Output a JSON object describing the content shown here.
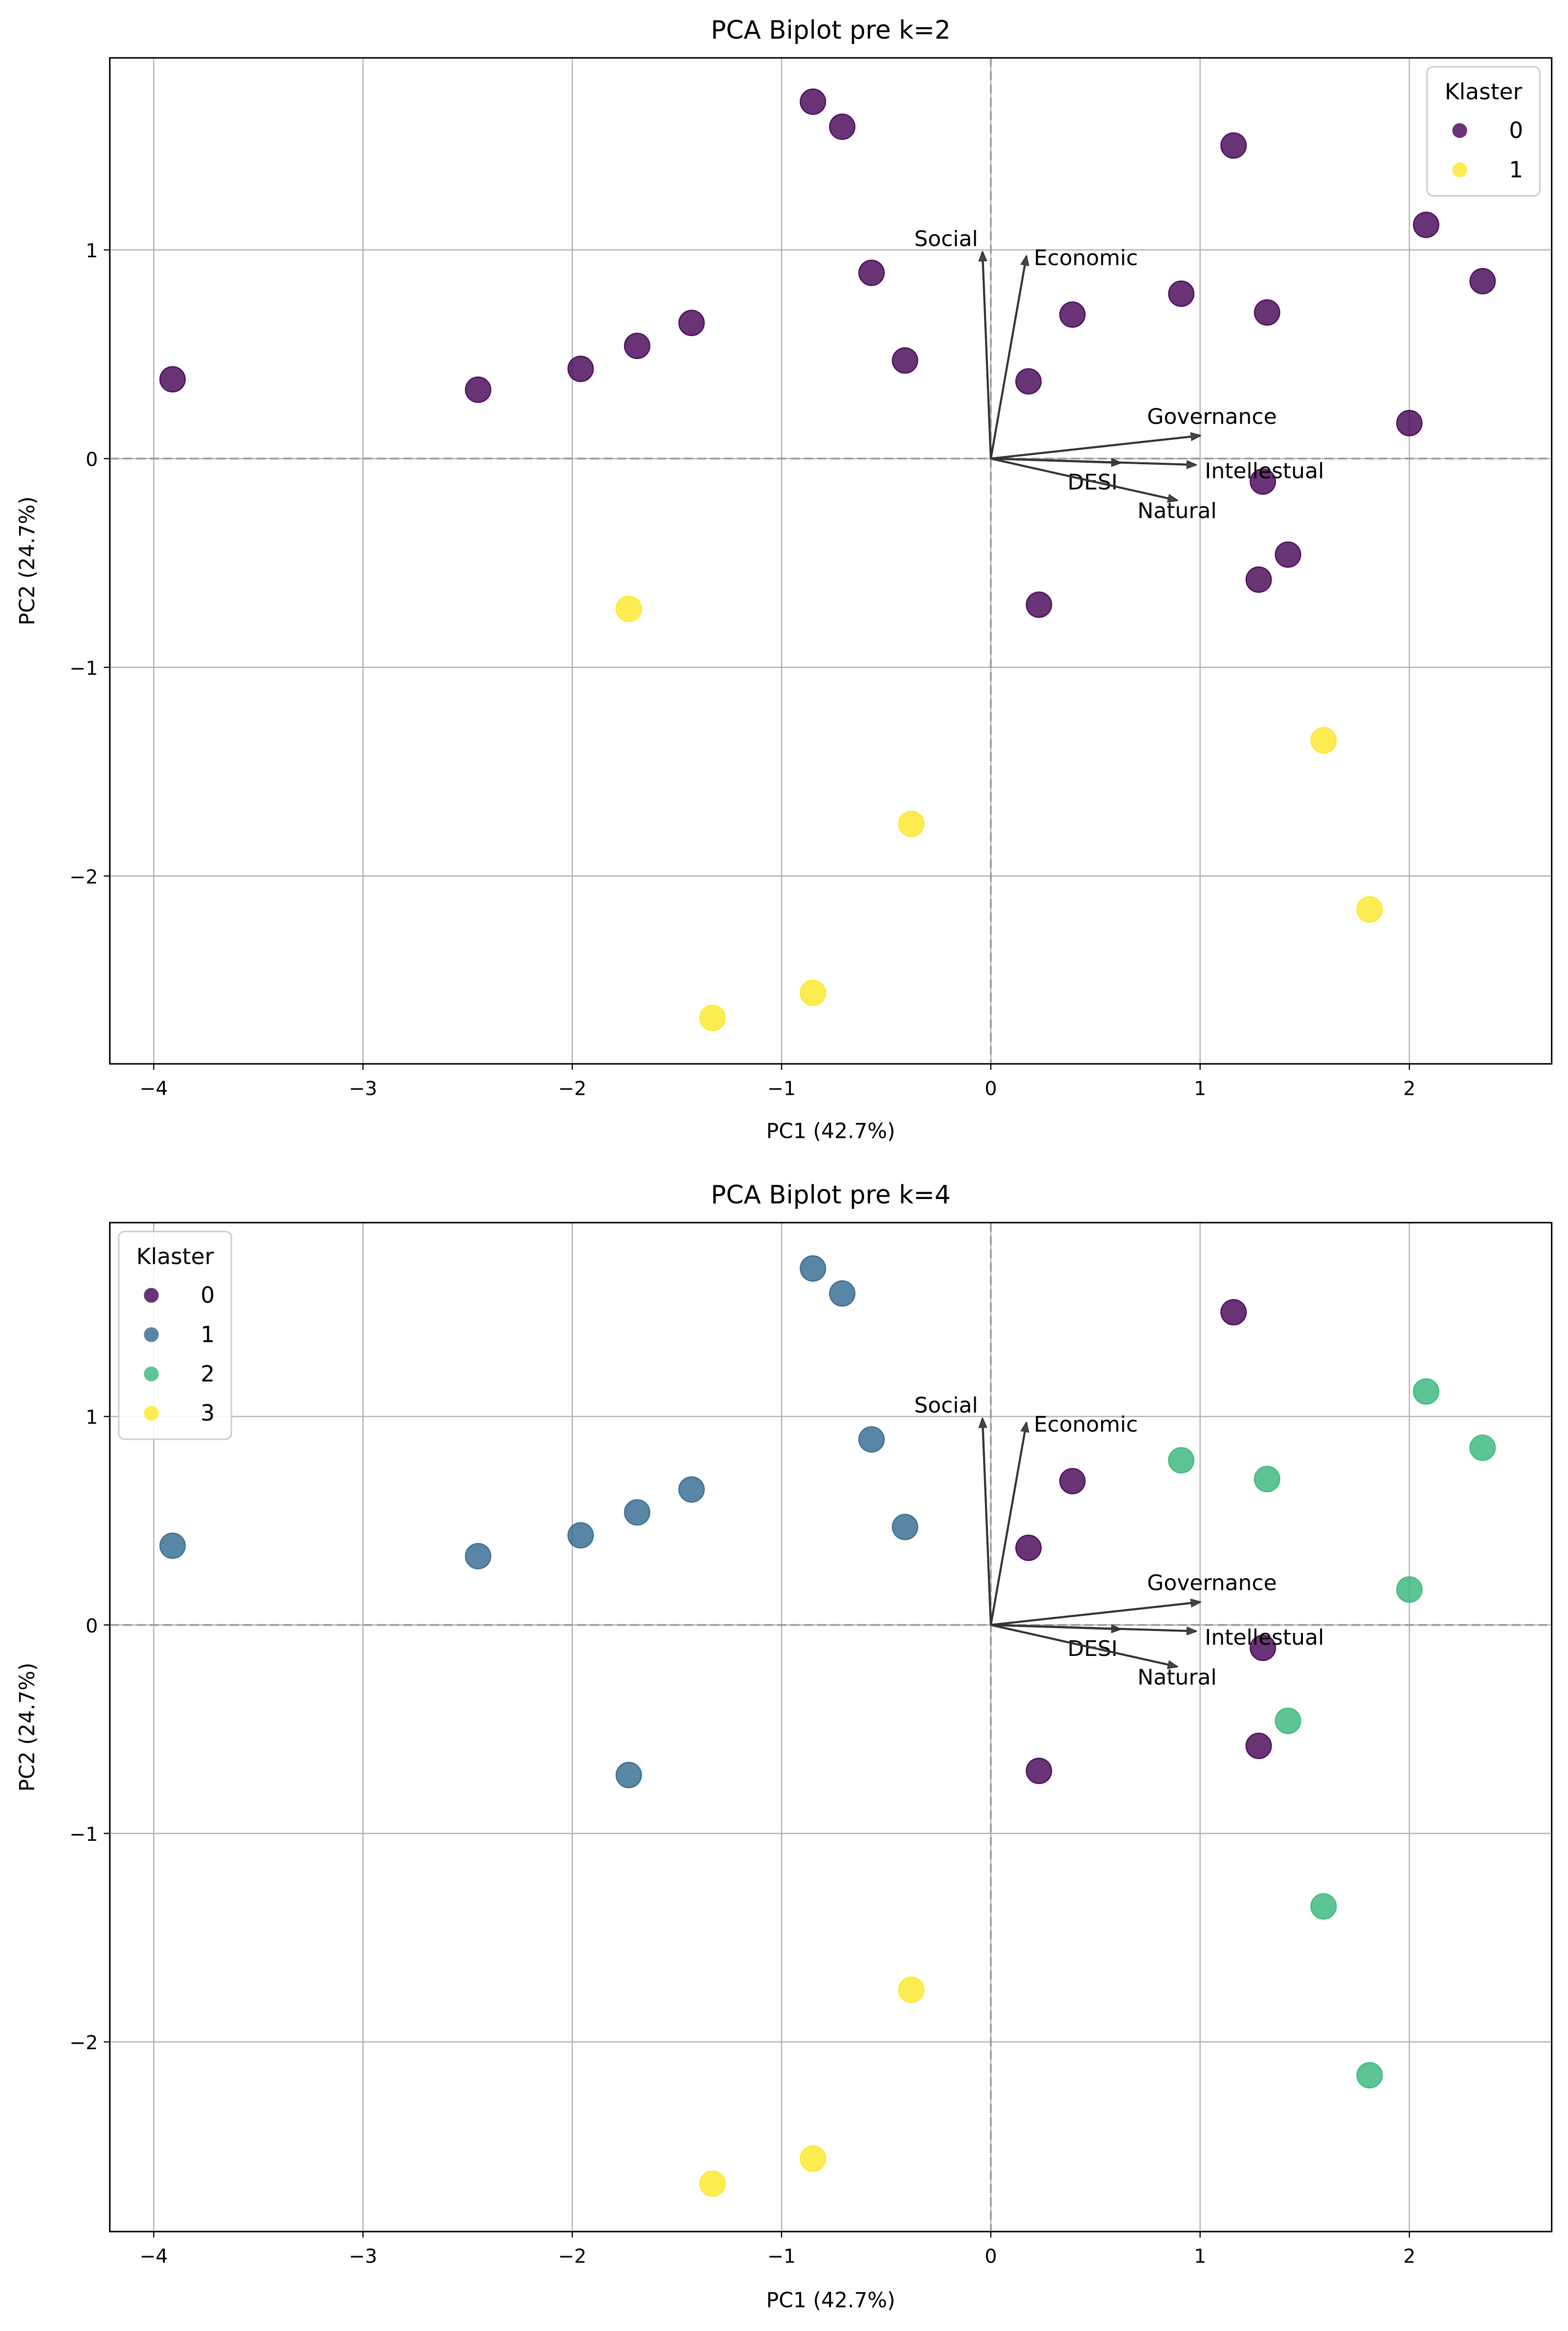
{
  "chart_data": [
    {
      "type": "scatter",
      "title": "PCA Biplot pre k=2",
      "xlabel": "PC1 (42.7%)",
      "ylabel": "PC2 (24.7%)",
      "xlim": [
        -4.21,
        2.68
      ],
      "ylim": [
        -2.9,
        1.92
      ],
      "xticks": [
        -4,
        -3,
        -2,
        -1,
        0,
        1,
        2
      ],
      "yticks": [
        -2,
        -1,
        0,
        1
      ],
      "grid": true,
      "legend": {
        "title": "Klaster",
        "placement": "top-right",
        "entries": [
          "0",
          "1"
        ]
      },
      "colors": [
        "#440154",
        "#fde725"
      ],
      "points": [
        {
          "x": -0.85,
          "y": 1.71,
          "c": 0
        },
        {
          "x": -0.71,
          "y": 1.59,
          "c": 0
        },
        {
          "x": 1.16,
          "y": 1.5,
          "c": 0
        },
        {
          "x": 2.08,
          "y": 1.12,
          "c": 0
        },
        {
          "x": 2.35,
          "y": 0.85,
          "c": 0
        },
        {
          "x": -0.57,
          "y": 0.89,
          "c": 0
        },
        {
          "x": 0.39,
          "y": 0.69,
          "c": 0
        },
        {
          "x": 0.91,
          "y": 0.79,
          "c": 0
        },
        {
          "x": 1.32,
          "y": 0.7,
          "c": 0
        },
        {
          "x": -1.43,
          "y": 0.65,
          "c": 0
        },
        {
          "x": -1.69,
          "y": 0.54,
          "c": 0
        },
        {
          "x": -1.96,
          "y": 0.43,
          "c": 0
        },
        {
          "x": -2.45,
          "y": 0.33,
          "c": 0
        },
        {
          "x": -3.91,
          "y": 0.38,
          "c": 0
        },
        {
          "x": -0.41,
          "y": 0.47,
          "c": 0
        },
        {
          "x": 0.18,
          "y": 0.37,
          "c": 0
        },
        {
          "x": 2.0,
          "y": 0.17,
          "c": 0
        },
        {
          "x": 1.3,
          "y": -0.11,
          "c": 0
        },
        {
          "x": 1.42,
          "y": -0.46,
          "c": 0
        },
        {
          "x": 1.28,
          "y": -0.58,
          "c": 0
        },
        {
          "x": 0.23,
          "y": -0.7,
          "c": 0
        },
        {
          "x": -1.73,
          "y": -0.72,
          "c": 1
        },
        {
          "x": 1.59,
          "y": -1.35,
          "c": 1
        },
        {
          "x": -0.38,
          "y": -1.75,
          "c": 1
        },
        {
          "x": 1.81,
          "y": -2.16,
          "c": 1
        },
        {
          "x": -0.85,
          "y": -2.56,
          "c": 1
        },
        {
          "x": -1.33,
          "y": -2.68,
          "c": 1
        }
      ],
      "loadings": [
        {
          "name": "Social",
          "x": -0.04,
          "y": 0.99
        },
        {
          "name": "Economic",
          "x": 0.17,
          "y": 0.97
        },
        {
          "name": "Governance",
          "x": 1.0,
          "y": 0.11
        },
        {
          "name": "DESI",
          "x": 0.62,
          "y": -0.02
        },
        {
          "name": "Intellestual",
          "x": 0.98,
          "y": -0.03
        },
        {
          "name": "Natural",
          "x": 0.89,
          "y": -0.2
        }
      ]
    },
    {
      "type": "scatter",
      "title": "PCA Biplot pre k=4",
      "xlabel": "PC1 (42.7%)",
      "ylabel": "PC2 (24.7%)",
      "xlim": [
        -4.21,
        2.68
      ],
      "ylim": [
        -2.91,
        1.93
      ],
      "xticks": [
        -4,
        -3,
        -2,
        -1,
        0,
        1,
        2
      ],
      "yticks": [
        -2,
        -1,
        0,
        1
      ],
      "grid": true,
      "legend": {
        "title": "Klaster",
        "placement": "top-left",
        "entries": [
          "0",
          "1",
          "2",
          "3"
        ]
      },
      "colors": [
        "#440154",
        "#31688e",
        "#35b779",
        "#fde725"
      ],
      "points": [
        {
          "x": -0.85,
          "y": 1.71,
          "c": 1
        },
        {
          "x": -0.71,
          "y": 1.59,
          "c": 1
        },
        {
          "x": 1.16,
          "y": 1.5,
          "c": 0
        },
        {
          "x": 2.08,
          "y": 1.12,
          "c": 2
        },
        {
          "x": 2.35,
          "y": 0.85,
          "c": 2
        },
        {
          "x": -0.57,
          "y": 0.89,
          "c": 1
        },
        {
          "x": 0.39,
          "y": 0.69,
          "c": 0
        },
        {
          "x": 0.91,
          "y": 0.79,
          "c": 2
        },
        {
          "x": 1.32,
          "y": 0.7,
          "c": 2
        },
        {
          "x": -1.43,
          "y": 0.65,
          "c": 1
        },
        {
          "x": -1.69,
          "y": 0.54,
          "c": 1
        },
        {
          "x": -1.96,
          "y": 0.43,
          "c": 1
        },
        {
          "x": -2.45,
          "y": 0.33,
          "c": 1
        },
        {
          "x": -3.91,
          "y": 0.38,
          "c": 1
        },
        {
          "x": -0.41,
          "y": 0.47,
          "c": 1
        },
        {
          "x": 0.18,
          "y": 0.37,
          "c": 0
        },
        {
          "x": 2.0,
          "y": 0.17,
          "c": 2
        },
        {
          "x": 1.3,
          "y": -0.11,
          "c": 0
        },
        {
          "x": 1.42,
          "y": -0.46,
          "c": 2
        },
        {
          "x": 1.28,
          "y": -0.58,
          "c": 0
        },
        {
          "x": 0.23,
          "y": -0.7,
          "c": 0
        },
        {
          "x": -1.73,
          "y": -0.72,
          "c": 1
        },
        {
          "x": 1.59,
          "y": -1.35,
          "c": 2
        },
        {
          "x": -0.38,
          "y": -1.75,
          "c": 3
        },
        {
          "x": 1.81,
          "y": -2.16,
          "c": 2
        },
        {
          "x": -0.85,
          "y": -2.56,
          "c": 3
        },
        {
          "x": -1.33,
          "y": -2.68,
          "c": 3
        }
      ],
      "loadings": [
        {
          "name": "Social",
          "x": -0.04,
          "y": 0.99
        },
        {
          "name": "Economic",
          "x": 0.17,
          "y": 0.97
        },
        {
          "name": "Governance",
          "x": 1.0,
          "y": 0.11
        },
        {
          "name": "DESI",
          "x": 0.62,
          "y": -0.02
        },
        {
          "name": "Intellestual",
          "x": 0.98,
          "y": -0.03
        },
        {
          "name": "Natural",
          "x": 0.89,
          "y": -0.2
        }
      ]
    }
  ]
}
